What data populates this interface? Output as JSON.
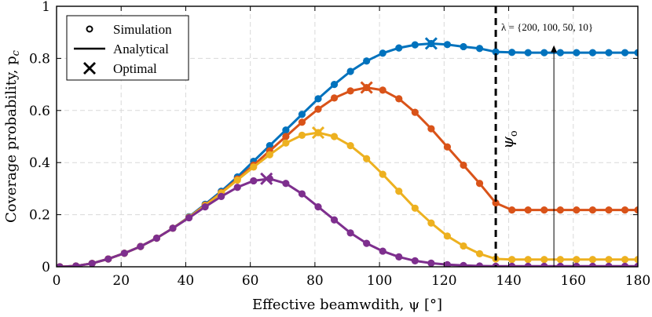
{
  "chart_data": {
    "type": "line",
    "xlabel": "Effective beamwdith, ψ [°]",
    "ylabel": "Coverage probability, p",
    "ylabel_sub": "c",
    "xlim": [
      0,
      180
    ],
    "ylim": [
      0,
      1
    ],
    "xticks": [
      0,
      20,
      40,
      60,
      80,
      100,
      120,
      140,
      160,
      180
    ],
    "yticks": [
      0,
      0.2,
      0.4,
      0.6,
      0.8,
      1
    ],
    "ytick_labels": [
      "0",
      "0.2",
      "0.4",
      "0.6",
      "0.8",
      "1"
    ],
    "grid": true,
    "legend": {
      "position": "top-left",
      "entries": [
        {
          "label": "Simulation",
          "marker": "circle"
        },
        {
          "label": "Analytical",
          "marker": "line"
        },
        {
          "label": "Optimal",
          "marker": "cross"
        }
      ]
    },
    "vline": {
      "x": 136,
      "label": "ψ",
      "label_sub": "o"
    },
    "annotation": {
      "text": "λ = {200, 100, 50, 10}",
      "arrow_x": 154,
      "arrow_from_y": 0,
      "arrow_to_y": 0.85
    },
    "x": [
      1,
      6,
      11,
      16,
      21,
      26,
      31,
      36,
      41,
      46,
      51,
      56,
      61,
      66,
      71,
      76,
      81,
      86,
      91,
      96,
      101,
      106,
      111,
      116,
      121,
      126,
      131,
      136,
      141,
      146,
      151,
      156,
      161,
      166,
      171,
      176,
      180
    ],
    "series": [
      {
        "name": "λ = 200",
        "color": "#0072BD",
        "values": [
          0.0,
          0.003,
          0.013,
          0.03,
          0.052,
          0.078,
          0.11,
          0.148,
          0.192,
          0.24,
          0.29,
          0.345,
          0.405,
          0.465,
          0.525,
          0.585,
          0.645,
          0.7,
          0.75,
          0.79,
          0.82,
          0.84,
          0.852,
          0.857,
          0.853,
          0.845,
          0.838,
          0.825,
          0.823,
          0.822,
          0.822,
          0.822,
          0.822,
          0.822,
          0.822,
          0.822,
          0.822
        ],
        "optimal": {
          "x": 116,
          "y": 0.857
        }
      },
      {
        "name": "λ = 100",
        "color": "#D95319",
        "values": [
          0.0,
          0.003,
          0.013,
          0.03,
          0.052,
          0.078,
          0.11,
          0.148,
          0.19,
          0.237,
          0.285,
          0.337,
          0.39,
          0.445,
          0.5,
          0.555,
          0.605,
          0.648,
          0.675,
          0.688,
          0.678,
          0.645,
          0.593,
          0.53,
          0.46,
          0.39,
          0.32,
          0.245,
          0.218,
          0.218,
          0.218,
          0.218,
          0.218,
          0.218,
          0.218,
          0.218,
          0.218
        ],
        "optimal": {
          "x": 96,
          "y": 0.688
        }
      },
      {
        "name": "λ = 50",
        "color": "#EDB120",
        "values": [
          0.0,
          0.003,
          0.013,
          0.03,
          0.052,
          0.078,
          0.11,
          0.148,
          0.19,
          0.235,
          0.283,
          0.333,
          0.383,
          0.43,
          0.475,
          0.505,
          0.515,
          0.5,
          0.465,
          0.415,
          0.355,
          0.29,
          0.225,
          0.168,
          0.118,
          0.08,
          0.05,
          0.03,
          0.028,
          0.028,
          0.028,
          0.028,
          0.028,
          0.028,
          0.028,
          0.028,
          0.028
        ],
        "optimal": {
          "x": 81,
          "y": 0.515
        }
      },
      {
        "name": "λ = 10",
        "color": "#7E2F8E",
        "values": [
          0.0,
          0.003,
          0.013,
          0.03,
          0.052,
          0.078,
          0.11,
          0.148,
          0.188,
          0.23,
          0.27,
          0.305,
          0.33,
          0.338,
          0.32,
          0.28,
          0.23,
          0.18,
          0.13,
          0.09,
          0.06,
          0.038,
          0.023,
          0.014,
          0.008,
          0.005,
          0.003,
          0.002,
          0.002,
          0.002,
          0.002,
          0.002,
          0.002,
          0.002,
          0.002,
          0.002,
          0.002
        ],
        "optimal": {
          "x": 65,
          "y": 0.338
        }
      }
    ]
  }
}
